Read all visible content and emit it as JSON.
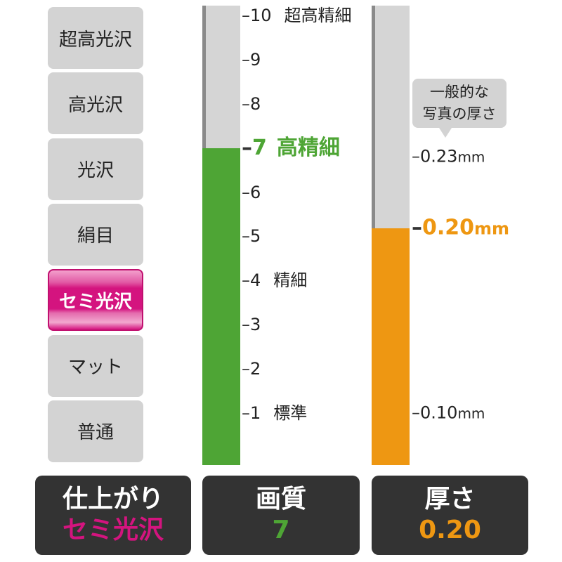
{
  "finish_options": [
    "超高光沢",
    "高光沢",
    "光沢",
    "絹目",
    "セミ光沢",
    "マット",
    "普通"
  ],
  "finish_selected": "セミ光沢",
  "quality_scale": {
    "ticks": [
      "10",
      "9",
      "8",
      "7",
      "6",
      "5",
      "4",
      "3",
      "2",
      "1"
    ],
    "labels": {
      "10": "超高精細",
      "7": "高精細",
      "4": "精細",
      "1": "標準"
    },
    "value": 7
  },
  "thickness_scale": {
    "ticks": [
      "0.23",
      "0.20",
      "0.10"
    ],
    "unit": "mm",
    "value": 0.2,
    "callout": [
      "一般的な",
      "写真の厚さ"
    ]
  },
  "summary": {
    "finish": {
      "title": "仕上がり",
      "value": "セミ光沢"
    },
    "quality": {
      "title": "画質",
      "value": "7"
    },
    "thickness": {
      "title": "厚さ",
      "value": "0.20"
    }
  },
  "colors": {
    "finish": "#d4147f",
    "quality": "#4ea535",
    "thickness": "#ee9712",
    "inactive": "#d3d3d3",
    "summary_bg": "#333333"
  },
  "chart_data": {
    "type": "bar",
    "series": [
      {
        "name": "画質",
        "values": [
          7
        ],
        "ylim": [
          0,
          10
        ]
      },
      {
        "name": "厚さ",
        "values": [
          0.2
        ],
        "unit": "mm"
      }
    ]
  }
}
